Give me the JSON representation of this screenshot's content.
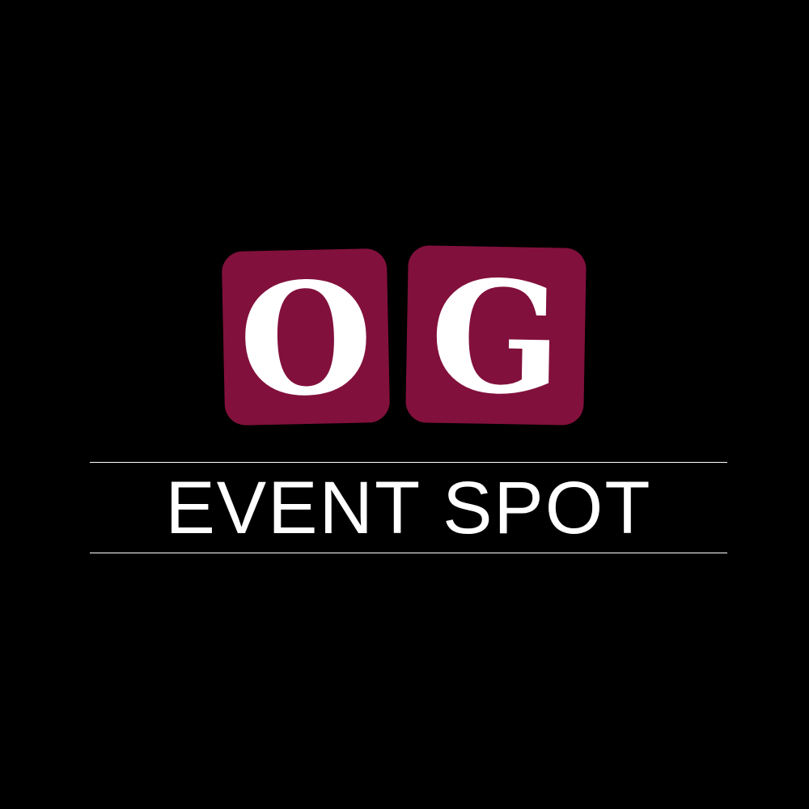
{
  "colors": {
    "background": "#000000",
    "tile": "#82103c",
    "text": "#ffffff",
    "rule": "#ffffff"
  },
  "logo": {
    "letters": [
      "O",
      "G"
    ],
    "tagline": "EVENT SPOT"
  }
}
